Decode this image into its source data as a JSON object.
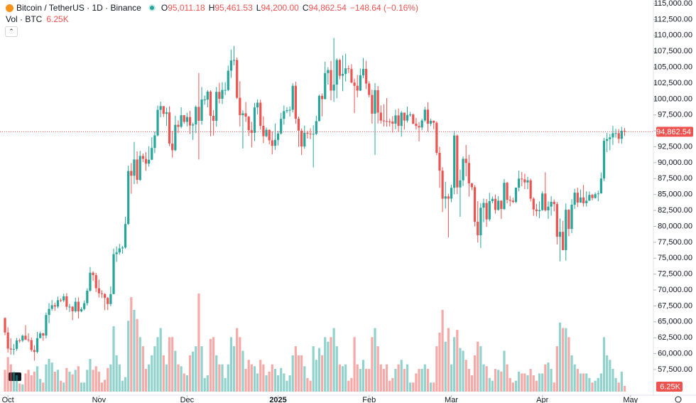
{
  "chart_data": {
    "type": "candlestick",
    "header": {
      "symbol": "Bitcoin / TetherUS · 1D · Binance",
      "o": "O",
      "open": "95,011.18",
      "h": "H",
      "high": "95,461.53",
      "l": "L",
      "low": "94,200.00",
      "c": "C",
      "close": "94,862.54",
      "change": "−148.64 (−0.16%)",
      "volume_title": "Vol · BTC",
      "volume": "6.25K"
    },
    "up_color": "#26a69a",
    "down_color": "#ef5350",
    "x": [
      0,
      1,
      2,
      3,
      4,
      5,
      6,
      7,
      8,
      9,
      10,
      11,
      12,
      13,
      14,
      15,
      16,
      17,
      18,
      19,
      20,
      21,
      22,
      23,
      24,
      25,
      26,
      27,
      28,
      29,
      30,
      31,
      32,
      33,
      34,
      35,
      36,
      37,
      38,
      39,
      40,
      41,
      42,
      43,
      44,
      45,
      46,
      47,
      48,
      49,
      50,
      51,
      52,
      53,
      54,
      55,
      56,
      57,
      58,
      59,
      60,
      61,
      62,
      63,
      64,
      65,
      66,
      67,
      68,
      69,
      70,
      71,
      72,
      73,
      74,
      75,
      76,
      77,
      78,
      79,
      80,
      81,
      82,
      83,
      84,
      85,
      86,
      87,
      88,
      89,
      90,
      91,
      92,
      93,
      94,
      95,
      96,
      97,
      98,
      99,
      100,
      101,
      102,
      103,
      104,
      105,
      106,
      107,
      108,
      109,
      110,
      111,
      112,
      113,
      114,
      115,
      116,
      117,
      118,
      119,
      120,
      121,
      122,
      123,
      124,
      125,
      126,
      127,
      128,
      129,
      130,
      131,
      132,
      133,
      134,
      135,
      136,
      137,
      138,
      139,
      140,
      141,
      142,
      143,
      144,
      145,
      146,
      147,
      148,
      149,
      150,
      151,
      152,
      153,
      154,
      155,
      156,
      157,
      158,
      159,
      160,
      161,
      162,
      163,
      164,
      165,
      166,
      167,
      168,
      169,
      170,
      171,
      172,
      173,
      174,
      175,
      176,
      177,
      178,
      179,
      180,
      181,
      182,
      183,
      184,
      185,
      186,
      187,
      188,
      189,
      190,
      191,
      192,
      193,
      194,
      195,
      196,
      197,
      198,
      199,
      200,
      201,
      202,
      203,
      204,
      205,
      206,
      207,
      208,
      209,
      210,
      211
    ],
    "open": [
      65600,
      63330,
      60800,
      60650,
      60750,
      62080,
      62060,
      62820,
      62220,
      62130,
      60580,
      60270,
      62450,
      63190,
      62850,
      66080,
      67040,
      67610,
      67400,
      68400,
      68360,
      69000,
      67370,
      67380,
      66660,
      68160,
      66640,
      67010,
      67930,
      69900,
      72720,
      72340,
      70280,
      69480,
      69370,
      68760,
      67800,
      69360,
      75640,
      75900,
      76540,
      76680,
      80370,
      88700,
      87960,
      90500,
      87300,
      91060,
      90600,
      89850,
      90470,
      92310,
      94290,
      98300,
      98890,
      97670,
      97900,
      93010,
      91960,
      95950,
      95640,
      97460,
      96410,
      97180,
      95840,
      96000,
      98770,
      96590,
      99920,
      99920,
      101170,
      97360,
      96590,
      101120,
      100040,
      101420,
      101420,
      104460,
      106060,
      106140,
      100200,
      97460,
      97760,
      97220,
      95100,
      94690,
      98680,
      99430,
      95790,
      94160,
      95160,
      93520,
      92640,
      93580,
      94590,
      96890,
      98100,
      98240,
      98310,
      102080,
      96920,
      95040,
      92550,
      94700,
      94570,
      94490,
      94520,
      96530,
      100500,
      99990,
      104080,
      104560,
      101330,
      102260,
      106140,
      103650,
      103960,
      104820,
      104710,
      102590,
      102080,
      101330,
      103730,
      104740,
      102430,
      100640,
      97700,
      101400,
      97870,
      96620,
      96550,
      96470,
      96460,
      96130,
      97430,
      95780,
      97870,
      96620,
      97500,
      97570,
      96120,
      95770,
      95540,
      96640,
      98330,
      96130,
      96580,
      96270,
      91550,
      88740,
      84350,
      84710,
      84350,
      86060,
      94270,
      86120,
      87220,
      90620,
      89960,
      86740,
      86150,
      80730,
      78600,
      82930,
      83680,
      81100,
      83960,
      84330,
      82580,
      84030,
      82720,
      86850,
      84170,
      84040,
      83830,
      86080,
      87500,
      87390,
      86900,
      87230,
      84350,
      82650,
      82390,
      82550,
      85160,
      82520,
      83100,
      83860,
      83500,
      78370,
      79140,
      76270,
      82610,
      79590,
      83400,
      85290,
      83740,
      84540,
      83630,
      84030,
      84940,
      84450,
      85060,
      85170,
      87520,
      93440,
      93700,
      93980,
      94640,
      94640,
      93750,
      95011.18
    ],
    "high": [
      65700,
      64130,
      62400,
      61500,
      62480,
      62370,
      62990,
      64480,
      63200,
      62540,
      61320,
      63420,
      63480,
      63290,
      66480,
      67950,
      68420,
      68000,
      68970,
      68700,
      69400,
      69500,
      67820,
      67470,
      68800,
      68850,
      67300,
      68330,
      70270,
      73620,
      72960,
      72700,
      71630,
      69950,
      69500,
      68900,
      70580,
      76500,
      76850,
      77250,
      76950,
      81500,
      89530,
      89950,
      93270,
      91790,
      91850,
      91450,
      91650,
      92600,
      94000,
      94900,
      98970,
      99590,
      98760,
      98650,
      98870,
      94970,
      97370,
      96650,
      98700,
      97460,
      97840,
      98150,
      96300,
      99000,
      104090,
      101900,
      100550,
      101400,
      101380,
      98270,
      101900,
      102540,
      102650,
      102650,
      105250,
      107780,
      108350,
      106520,
      102800,
      98230,
      99540,
      97350,
      96420,
      99400,
      99960,
      99880,
      97300,
      95530,
      95240,
      94900,
      96150,
      95000,
      97840,
      98980,
      98730,
      98820,
      102480,
      102730,
      97260,
      95380,
      95840,
      95000,
      95400,
      95880,
      97370,
      100680,
      100870,
      105860,
      104990,
      106000,
      109590,
      106400,
      106330,
      106850,
      107120,
      105290,
      105470,
      103210,
      103780,
      104800,
      106460,
      106000,
      102800,
      101460,
      102500,
      102040,
      99000,
      99200,
      100140,
      96880,
      97320,
      98350,
      98500,
      98120,
      97750,
      98820,
      97970,
      97730,
      97040,
      96400,
      96900,
      98770,
      99500,
      96900,
      96650,
      96500,
      92500,
      89290,
      87000,
      85120,
      86560,
      95000,
      94420,
      88900,
      91000,
      92800,
      91230,
      86850,
      86480,
      83960,
      83620,
      84360,
      84300,
      85260,
      84700,
      85000,
      84750,
      84100,
      87450,
      87000,
      84800,
      84500,
      86100,
      88760,
      88540,
      88290,
      87790,
      87500,
      84560,
      83540,
      83920,
      85500,
      88500,
      83940,
      84720,
      84230,
      83820,
      81240,
      80870,
      83590,
      82700,
      84250,
      85900,
      86070,
      85800,
      86500,
      85500,
      85470,
      85100,
      85320,
      85600,
      88460,
      93890,
      94700,
      94540,
      95770,
      95320,
      95280,
      95630,
      95461.53
    ],
    "low": [
      62900,
      60160,
      59830,
      59820,
      60460,
      61690,
      61800,
      62130,
      61820,
      60300,
      58900,
      60050,
      62420,
      62050,
      62420,
      64800,
      66750,
      66730,
      67120,
      68110,
      68100,
      66850,
      66560,
      65260,
      66450,
      65520,
      66520,
      66800,
      67560,
      69730,
      71450,
      69680,
      68820,
      68740,
      66830,
      66840,
      67450,
      69330,
      74420,
      75570,
      75700,
      76490,
      80220,
      85120,
      86650,
      86670,
      87120,
      90090,
      88720,
      89380,
      90400,
      91500,
      94120,
      97140,
      97180,
      95780,
      92600,
      90790,
      91820,
      94650,
      95400,
      96100,
      95700,
      94500,
      93580,
      94660,
      90500,
      95980,
      99100,
      98700,
      94150,
      94260,
      95660,
      99310,
      99210,
      100630,
      101230,
      103330,
      105320,
      100000,
      95700,
      92230,
      96400,
      94200,
      92400,
      93400,
      97600,
      95200,
      93100,
      94000,
      92880,
      91320,
      92000,
      92700,
      94400,
      96000,
      97780,
      97270,
      97900,
      96130,
      92500,
      91200,
      92200,
      93800,
      93700,
      89260,
      94320,
      96500,
      97280,
      99950,
      102280,
      99800,
      99550,
      100100,
      103110,
      101230,
      102750,
      104100,
      102460,
      97780,
      100270,
      101250,
      103300,
      101560,
      100270,
      96150,
      91230,
      96150,
      96150,
      95700,
      95650,
      95690,
      94720,
      95250,
      94870,
      94090,
      95200,
      96300,
      97230,
      96050,
      95210,
      93350,
      95100,
      96400,
      94870,
      95750,
      95260,
      91180,
      86050,
      82250,
      82790,
      78260,
      83800,
      85050,
      85080,
      81500,
      86330,
      87850,
      84670,
      85700,
      80000,
      77460,
      76600,
      80650,
      79940,
      80800,
      83640,
      82000,
      82460,
      81180,
      82570,
      83600,
      83170,
      83650,
      83650,
      85530,
      86300,
      85860,
      85850,
      83900,
      81650,
      81560,
      81280,
      82430,
      82320,
      81200,
      81670,
      82370,
      77150,
      74510,
      76240,
      74620,
      78450,
      78940,
      82750,
      83030,
      83680,
      83100,
      83110,
      84000,
      84100,
      84350,
      83950,
      85150,
      87100,
      91660,
      91950,
      92800,
      93930,
      93050,
      92970,
      94200
    ],
    "close": [
      63330,
      60800,
      60650,
      60750,
      62080,
      62060,
      62820,
      62220,
      62130,
      60580,
      60270,
      62450,
      63190,
      62850,
      66080,
      67040,
      67610,
      67400,
      68400,
      68360,
      69000,
      67370,
      67380,
      66660,
      68160,
      66640,
      67010,
      67930,
      69900,
      72720,
      72340,
      70280,
      69480,
      69370,
      68760,
      67800,
      69360,
      75640,
      75900,
      76540,
      76680,
      80370,
      88700,
      87960,
      90500,
      87300,
      91060,
      90600,
      89850,
      90470,
      92310,
      94290,
      98300,
      98890,
      97670,
      97900,
      93010,
      91960,
      95950,
      95640,
      97460,
      96410,
      97180,
      95840,
      96000,
      98770,
      96590,
      99920,
      99920,
      101170,
      97360,
      96590,
      101120,
      100040,
      101420,
      101420,
      104460,
      106060,
      106140,
      100200,
      97460,
      97760,
      97220,
      95100,
      94690,
      98680,
      99430,
      95790,
      94160,
      95160,
      93520,
      92640,
      93580,
      94590,
      96890,
      98100,
      98240,
      98310,
      102080,
      96920,
      95040,
      92550,
      94700,
      94570,
      94490,
      94520,
      96530,
      100500,
      99990,
      104080,
      104560,
      101330,
      102260,
      106140,
      103650,
      103960,
      104820,
      104710,
      102590,
      102080,
      101330,
      103730,
      104740,
      102430,
      100640,
      97700,
      101400,
      97870,
      96620,
      96550,
      96470,
      96460,
      96130,
      97430,
      95780,
      97870,
      96620,
      97500,
      97570,
      96120,
      95770,
      95540,
      96640,
      98330,
      96130,
      96580,
      96270,
      91550,
      88740,
      84350,
      84710,
      84350,
      86060,
      94270,
      86120,
      87220,
      90620,
      89960,
      86740,
      86150,
      80730,
      78600,
      82930,
      83680,
      81100,
      83960,
      84330,
      82580,
      84030,
      82720,
      86850,
      84170,
      84040,
      83830,
      86080,
      87500,
      87390,
      86900,
      87230,
      84350,
      82650,
      82390,
      82550,
      85160,
      82520,
      83100,
      83860,
      83500,
      78370,
      79140,
      76270,
      82610,
      79590,
      83400,
      85290,
      83740,
      84540,
      83630,
      84030,
      84940,
      84450,
      85060,
      85170,
      87520,
      93440,
      93700,
      93980,
      94640,
      94640,
      93750,
      95011.18,
      94862.54
    ],
    "volume": [
      24000,
      38000,
      30000,
      22000,
      18000,
      9000,
      8000,
      20000,
      24000,
      18000,
      22000,
      28000,
      14000,
      10000,
      30000,
      36000,
      32000,
      22000,
      24000,
      12000,
      10000,
      26000,
      22000,
      19000,
      24000,
      28000,
      10000,
      10000,
      24000,
      36000,
      24000,
      28000,
      22000,
      10000,
      13000,
      26000,
      30000,
      72000,
      40000,
      30000,
      12000,
      16000,
      78000,
      104000,
      90000,
      80000,
      60000,
      50000,
      25000,
      30000,
      40000,
      50000,
      60000,
      70000,
      40000,
      30000,
      60000,
      60000,
      45000,
      30000,
      28000,
      20000,
      18000,
      40000,
      44000,
      50000,
      108000,
      50000,
      15000,
      18000,
      58000,
      60000,
      40000,
      30000,
      30000,
      15000,
      30000,
      60000,
      50000,
      70000,
      60000,
      45000,
      25000,
      35000,
      30000,
      28000,
      20000,
      35000,
      30000,
      18000,
      22000,
      30000,
      25000,
      18000,
      26000,
      20000,
      12000,
      18000,
      40000,
      50000,
      40000,
      40000,
      28000,
      15000,
      12000,
      50000,
      35000,
      48000,
      40000,
      60000,
      55000,
      60000,
      70000,
      50000,
      30000,
      28000,
      30000,
      12000,
      15000,
      60000,
      30000,
      25000,
      35000,
      25000,
      25000,
      60000,
      70000,
      50000,
      30000,
      25000,
      30000,
      12000,
      15000,
      25000,
      30000,
      35000,
      25000,
      30000,
      10000,
      10000,
      20000,
      25000,
      25000,
      30000,
      25000,
      10000,
      10000,
      50000,
      65000,
      90000,
      55000,
      70000,
      30000,
      60000,
      68000,
      48000,
      45000,
      35000,
      25000,
      18000,
      40000,
      55000,
      50000,
      30000,
      28000,
      15000,
      12000,
      25000,
      24000,
      22000,
      45000,
      30000,
      15000,
      10000,
      12000,
      22000,
      20000,
      20000,
      18000,
      25000,
      18000,
      12000,
      20000,
      20000,
      30000,
      32000,
      25000,
      10000,
      50000,
      76000,
      70000,
      70000,
      60000,
      40000,
      30000,
      25000,
      20000,
      20000,
      20000,
      15000,
      10000,
      12000,
      15000,
      20000,
      60000,
      40000,
      35000,
      25000,
      15000,
      10000,
      22000,
      6250
    ],
    "xlim": [
      -1.7,
      220.8
    ],
    "xticks": [
      {
        "value": 1,
        "label": "Oct"
      },
      {
        "value": 32,
        "label": "Nov"
      },
      {
        "value": 62,
        "label": "Dec"
      },
      {
        "value": 93,
        "label": "2025"
      },
      {
        "value": 124,
        "label": "Feb"
      },
      {
        "value": 152,
        "label": "Mar"
      },
      {
        "value": 183,
        "label": "Apr"
      },
      {
        "value": 213,
        "label": "May"
      }
    ],
    "ylim": [
      53480,
      115558
    ],
    "yticks": [
      {
        "value": 57500,
        "label": "57,500.00"
      },
      {
        "value": 60000,
        "label": "60,000.00"
      },
      {
        "value": 62500,
        "label": "62,500.00"
      },
      {
        "value": 65000,
        "label": "65,000.00"
      },
      {
        "value": 67500,
        "label": "67,500.00"
      },
      {
        "value": 70000,
        "label": "70,000.00"
      },
      {
        "value": 72500,
        "label": "72,500.00"
      },
      {
        "value": 75000,
        "label": "75,000.00"
      },
      {
        "value": 77500,
        "label": "77,500.00"
      },
      {
        "value": 80000,
        "label": "80,000.00"
      },
      {
        "value": 82500,
        "label": "82,500.00"
      },
      {
        "value": 85000,
        "label": "85,000.00"
      },
      {
        "value": 87500,
        "label": "87,500.00"
      },
      {
        "value": 90000,
        "label": "90,000.00"
      },
      {
        "value": 92500,
        "label": "92,500.00"
      },
      {
        "value": 95000,
        "label": "95,000.00"
      },
      {
        "value": 97500,
        "label": "97,500.00"
      },
      {
        "value": 100000,
        "label": "100,000.00"
      },
      {
        "value": 102500,
        "label": "102,500.00"
      },
      {
        "value": 105000,
        "label": "105,000.00"
      },
      {
        "value": 107500,
        "label": "107,500.00"
      },
      {
        "value": 110000,
        "label": "110,000.00"
      },
      {
        "value": 112500,
        "label": "112,500.00"
      },
      {
        "value": 115000,
        "label": "115,000.00"
      }
    ],
    "grid": false
  }
}
